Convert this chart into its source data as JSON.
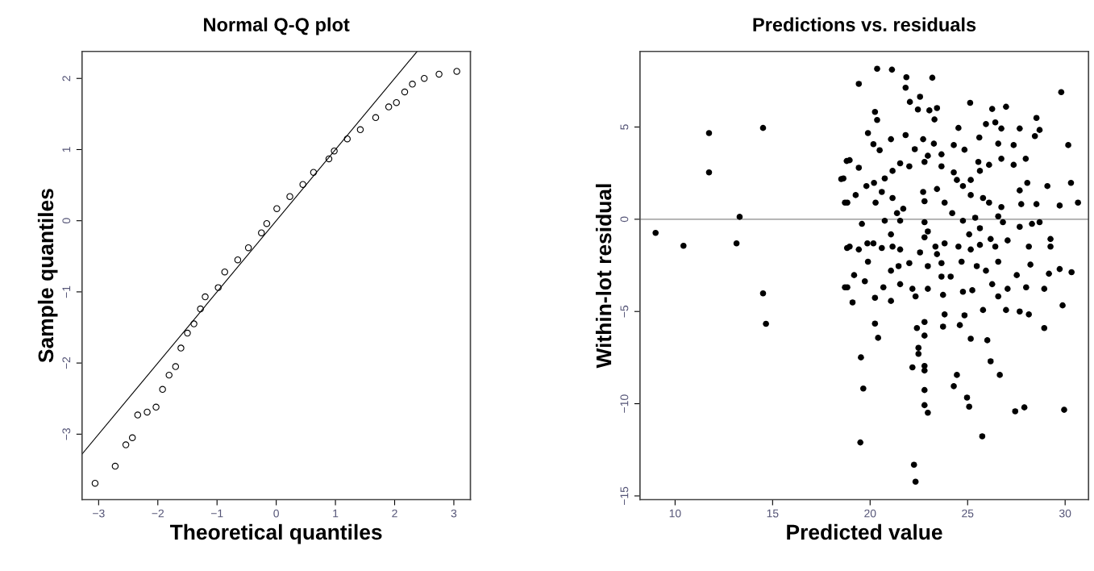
{
  "chart_data": [
    {
      "type": "scatter",
      "title": "Normal Q-Q plot",
      "xlabel": "Theoretical quantiles",
      "ylabel": "Sample quantiles",
      "xlim": [
        -3.28,
        3.28
      ],
      "ylim": [
        -3.92,
        2.38
      ],
      "xticks": [
        -3,
        -2,
        -1,
        0,
        1,
        2,
        3
      ],
      "yticks": [
        -3,
        -2,
        -1,
        0,
        1,
        2
      ],
      "grid": false,
      "legend": false,
      "series": [
        {
          "marker": "circle",
          "color": "#000000",
          "x": [
            -3.06,
            -2.72,
            -2.54,
            -2.43,
            -2.34,
            -2.18,
            -2.03,
            -1.92,
            -1.81,
            -1.7,
            -1.61,
            -1.5,
            -1.39,
            -1.28,
            -1.2,
            -0.98,
            -0.87,
            -0.65,
            -0.47,
            -0.25,
            -0.16,
            0.01,
            0.23,
            0.45,
            0.63,
            0.89,
            0.98,
            1.2,
            1.42,
            1.68,
            1.9,
            2.03,
            2.17,
            2.3,
            2.5,
            2.75,
            3.05
          ],
          "values": [
            -3.69,
            -3.45,
            -3.15,
            -3.05,
            -2.73,
            -2.69,
            -2.62,
            -2.37,
            -2.17,
            -2.05,
            -1.79,
            -1.58,
            -1.45,
            -1.24,
            -1.07,
            -0.94,
            -0.72,
            -0.55,
            -0.38,
            -0.17,
            -0.04,
            0.17,
            0.34,
            0.51,
            0.68,
            0.87,
            0.98,
            1.15,
            1.28,
            1.45,
            1.6,
            1.66,
            1.81,
            1.92,
            2.0,
            2.06,
            2.1
          ]
        },
        {
          "type": "line",
          "marker": "none",
          "color": "#000000",
          "x": [
            -3.28,
            2.38
          ],
          "values": [
            -3.28,
            2.38
          ]
        }
      ]
    },
    {
      "type": "scatter",
      "title": "Predictions vs. residuals",
      "xlabel": "Predicted value",
      "ylabel": "Within-lot residual",
      "xlim": [
        8.2,
        31.2
      ],
      "ylim": [
        -15.2,
        9.1
      ],
      "xticks": [
        10,
        15,
        20,
        25,
        30
      ],
      "yticks": [
        -15,
        -10,
        -5,
        0,
        5
      ],
      "grid": false,
      "legend": false,
      "ref_lines": [
        {
          "axis": "y",
          "value": 0,
          "color": "#888888"
        }
      ],
      "series": [
        {
          "marker": "circle",
          "color": "#000000",
          "x": [
            9.0,
            10.43,
            11.74,
            11.74,
            13.15,
            13.31,
            14.51,
            14.51,
            14.66,
            18.8,
            18.52,
            18.71,
            18.82,
            18.71,
            19.42,
            20.36,
            21.12,
            21.86,
            23.19,
            21.82,
            22.04,
            22.56,
            22.45,
            23.04,
            23.43,
            23.3,
            20.25,
            20.36,
            19.89,
            20.17,
            20.49,
            21.07,
            21.82,
            22.29,
            22.72,
            23.27,
            23.66,
            24.53,
            24.29,
            24.84,
            25.13,
            25.6,
            25.94,
            26.26,
            26.97,
            26.42,
            26.73,
            26.57,
            27.36,
            27.67,
            28.53,
            28.69,
            28.45,
            29.8,
            30.16,
            27.98,
            27.36,
            26.73,
            26.1,
            25.55,
            25.63,
            25.16,
            24.76,
            24.29,
            24.45,
            23.66,
            22.96,
            22.79,
            22.01,
            21.54,
            21.15,
            20.75,
            20.2,
            19.81,
            19.42,
            18.95,
            18.63,
            18.83,
            19.26,
            20.28,
            20.6,
            21.15,
            21.7,
            21.38,
            22.79,
            22.72,
            23.43,
            23.82,
            24.21,
            25.16,
            25.79,
            26.1,
            26.73,
            27.67,
            27.75,
            28.06,
            28.53,
            29.09,
            29.72,
            30.3,
            30.66,
            19.58,
            20.75,
            21.54,
            22.79,
            22.96,
            22.79,
            24.76,
            25.39,
            25.63,
            26.57,
            26.81,
            27.67,
            28.3,
            28.69,
            21.07,
            19.86,
            20.17,
            18.95,
            19.42,
            19.89,
            20.6,
            21.15,
            21.54,
            23.35,
            23.82,
            23.43,
            23.66,
            24.53,
            25.08,
            25.16,
            25.63,
            26.18,
            26.42,
            27.05,
            25.47,
            25.94,
            26.57,
            24.69,
            22.01,
            21.46,
            21.07,
            22.56,
            22.96,
            28.22,
            28.14,
            29.25,
            29.25,
            29.17,
            29.72,
            30.33,
            19.18,
            19.73,
            18.83,
            20.25,
            19.1,
            20.68,
            21.07,
            21.54,
            22.17,
            22.96,
            22.33,
            23.66,
            24.13,
            23.74,
            24.76,
            25.24,
            26.26,
            26.57,
            27.05,
            27.52,
            28.0,
            28.93,
            25.79,
            26.97,
            27.67,
            28.14,
            29.87,
            28.93,
            23.82,
            24.84,
            23.74,
            24.6,
            20.25,
            20.41,
            22.79,
            22.4,
            22.79,
            25.16,
            26.01,
            22.48,
            22.48,
            26.18,
            22.17,
            22.79,
            22.79,
            26.65,
            19.53,
            24.45,
            24.29,
            19.65,
            22.79,
            24.97,
            25.08,
            22.79,
            22.96,
            27.44,
            27.91,
            29.95,
            25.75,
            19.5,
            22.25,
            22.33
          ],
          "values": [
            -0.74,
            -1.44,
            4.67,
            2.54,
            -1.31,
            0.13,
            4.95,
            -4.02,
            -5.67,
            3.16,
            2.18,
            0.9,
            -1.56,
            -3.69,
            7.34,
            8.16,
            8.11,
            7.7,
            7.67,
            7.13,
            6.36,
            6.64,
            5.95,
            5.9,
            6.03,
            5.41,
            5.82,
            5.38,
            4.67,
            4.07,
            3.74,
            4.34,
            4.56,
            3.8,
            4.34,
            4.1,
            3.52,
            4.95,
            4.02,
            3.77,
            6.31,
            4.43,
            5.16,
            5.98,
            6.1,
            5.25,
            4.92,
            4.1,
            4.02,
            4.92,
            5.49,
            4.84,
            4.51,
            6.89,
            4.02,
            3.28,
            2.95,
            3.28,
            2.95,
            3.11,
            2.62,
            2.13,
            1.8,
            2.54,
            2.13,
            2.87,
            3.44,
            3.11,
            2.87,
            3.03,
            2.62,
            2.21,
            1.97,
            1.8,
            2.79,
            3.2,
            2.21,
            0.9,
            1.31,
            0.9,
            1.48,
            1.15,
            0.57,
            0.33,
            0.98,
            1.48,
            1.64,
            0.9,
            0.33,
            1.31,
            1.15,
            0.9,
            0.66,
            1.56,
            0.82,
            1.97,
            0.82,
            1.8,
            0.74,
            1.97,
            0.9,
            -0.25,
            -0.08,
            -0.08,
            -0.16,
            -0.66,
            -0.98,
            -0.08,
            0.08,
            -0.49,
            0.16,
            -0.16,
            -0.41,
            -0.25,
            -0.16,
            -0.82,
            -1.31,
            -1.31,
            -1.48,
            -1.64,
            -2.3,
            -1.56,
            -1.48,
            -1.64,
            -1.48,
            -1.31,
            -1.89,
            -2.38,
            -1.48,
            -0.82,
            -1.64,
            -1.39,
            -1.07,
            -1.48,
            -1.15,
            -2.54,
            -2.79,
            -2.3,
            -2.3,
            -2.38,
            -2.54,
            -2.79,
            -1.8,
            -2.54,
            -2.46,
            -1.48,
            -1.07,
            -1.48,
            -2.95,
            -2.7,
            -2.87,
            -3.03,
            -3.36,
            -3.69,
            -4.26,
            -4.51,
            -3.69,
            -4.43,
            -3.52,
            -3.77,
            -3.77,
            -4.18,
            -3.11,
            -3.11,
            -4.1,
            -3.93,
            -3.85,
            -3.52,
            -4.18,
            -3.77,
            -3.03,
            -3.69,
            -3.77,
            -4.92,
            -4.92,
            -5.0,
            -5.16,
            -4.67,
            -5.9,
            -5.16,
            -5.21,
            -5.82,
            -5.74,
            -5.66,
            -6.43,
            -5.57,
            -5.9,
            -6.31,
            -6.48,
            -6.56,
            -6.97,
            -7.3,
            -7.7,
            -8.03,
            -7.95,
            -8.2,
            -8.44,
            -7.49,
            -8.44,
            -9.05,
            -9.18,
            -9.26,
            -9.67,
            -10.16,
            -10.08,
            -10.49,
            -10.41,
            -10.2,
            -10.33,
            -11.77,
            -12.1,
            -13.31,
            -14.23
          ]
        }
      ]
    }
  ]
}
